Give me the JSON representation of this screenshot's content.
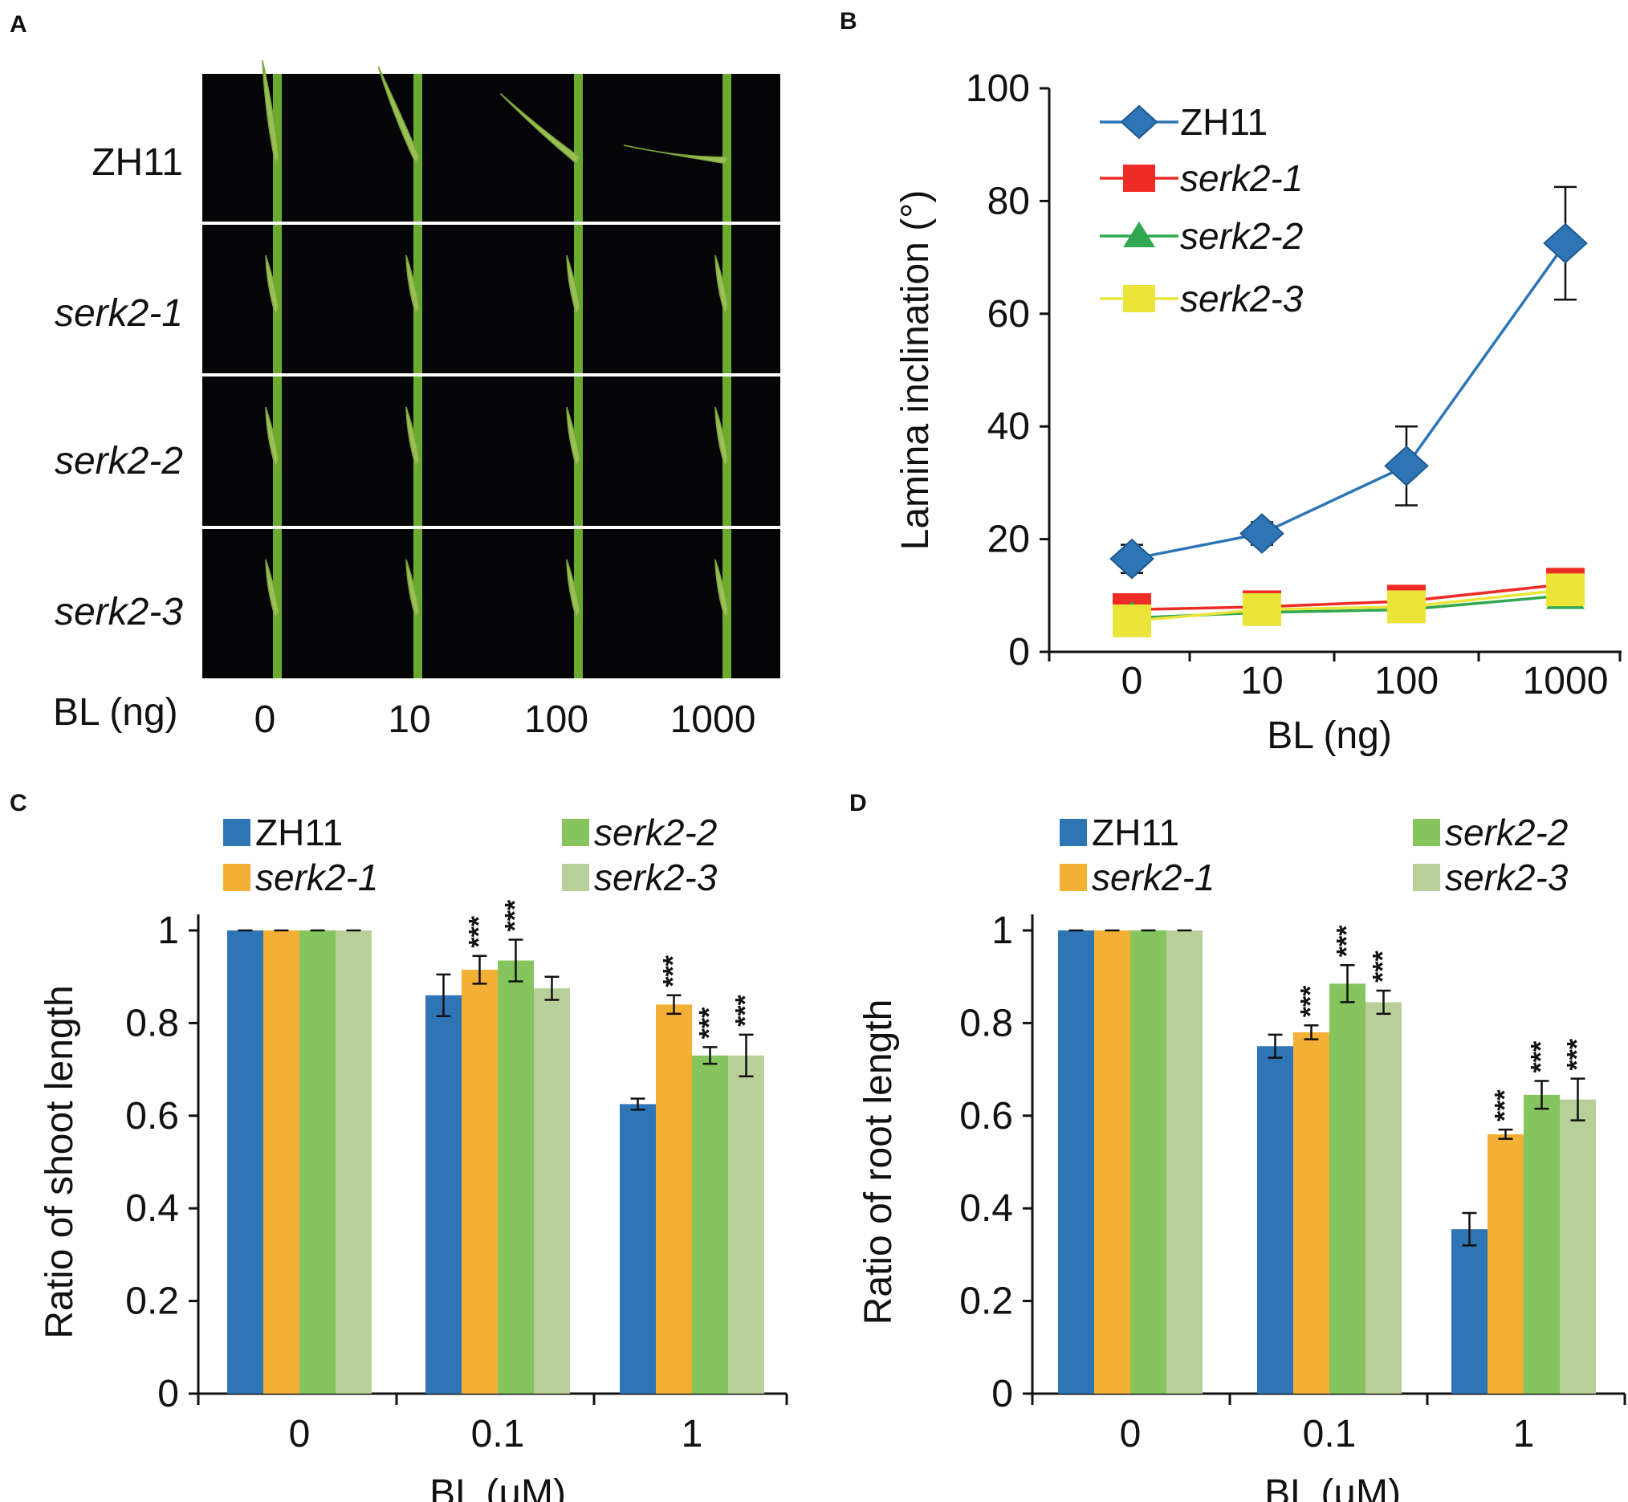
{
  "figure": {
    "panel_letters": [
      "A",
      "B",
      "C",
      "D"
    ],
    "colors": {
      "zh11": "#2e75b6",
      "serk2_1_line": "#ee2b24",
      "serk2_2_line": "#2fa84f",
      "serk2_3_line": "#ebe53a",
      "serk2_1_bar": "#f4b034",
      "serk2_2_bar": "#86c45e",
      "serk2_3_bar": "#b8cf9a",
      "stem": "#6aab2f",
      "photo_bg": "#050508"
    }
  },
  "photo": {
    "row_labels": [
      "ZH11",
      "serk2-1",
      "serk2-2",
      "serk2-3"
    ],
    "row_label_italic": [
      false,
      true,
      true,
      true
    ],
    "x_label": "BL (ng)",
    "column_labels": [
      "0",
      "10",
      "100",
      "1000"
    ],
    "leaf_description": "rice lamina joint inclination photographs"
  },
  "chart_data": [
    {
      "panel": "B",
      "type": "line",
      "title": "",
      "xlabel": "BL (ng)",
      "ylabel": "Lamina inclination (°)",
      "categories": [
        "0",
        "10",
        "100",
        "1000"
      ],
      "ylim": [
        0,
        100
      ],
      "yticks": [
        "0",
        "20",
        "40",
        "60",
        "80",
        "100"
      ],
      "legend_position": "top-left",
      "series": [
        {
          "name": "ZH11",
          "italic": false,
          "marker": "diamond",
          "color": "#2e75b6",
          "values": [
            16.5,
            21,
            33,
            72.5
          ],
          "errors": [
            2.5,
            2,
            7,
            10
          ]
        },
        {
          "name": "serk2-1",
          "italic": true,
          "marker": "square",
          "color": "#ee2b24",
          "values": [
            7.5,
            8,
            9,
            12
          ],
          "errors": [
            0,
            0,
            0,
            0
          ]
        },
        {
          "name": "serk2-2",
          "italic": true,
          "marker": "triangle",
          "color": "#2fa84f",
          "values": [
            6,
            7,
            7.5,
            10
          ],
          "errors": [
            0,
            0,
            0,
            0
          ]
        },
        {
          "name": "serk2-3",
          "italic": true,
          "marker": "square",
          "color": "#ebe53a",
          "values": [
            5.5,
            7.5,
            8,
            11
          ],
          "errors": [
            0,
            0,
            0,
            0
          ]
        }
      ]
    },
    {
      "panel": "C",
      "type": "bar",
      "title": "",
      "xlabel": "BL (μM)",
      "ylabel": "Ratio of shoot length",
      "categories": [
        "0",
        "0.1",
        "1"
      ],
      "ylim": [
        0,
        1
      ],
      "yticks": [
        "0",
        "0.2",
        "0.4",
        "0.6",
        "0.8",
        "1"
      ],
      "legend_position": "top",
      "significance_label": "***",
      "series": [
        {
          "name": "ZH11",
          "italic": false,
          "color": "#2e75b6",
          "values": [
            1,
            0.86,
            0.625
          ],
          "errors": [
            0,
            0.045,
            0.012
          ],
          "stars": [
            false,
            false,
            false
          ]
        },
        {
          "name": "serk2-1",
          "italic": true,
          "color": "#f4b034",
          "values": [
            1,
            0.915,
            0.84
          ],
          "errors": [
            0,
            0.03,
            0.02
          ],
          "stars": [
            false,
            true,
            true
          ]
        },
        {
          "name": "serk2-2",
          "italic": true,
          "color": "#86c45e",
          "values": [
            1,
            0.935,
            0.73
          ],
          "errors": [
            0,
            0.045,
            0.018
          ],
          "stars": [
            false,
            true,
            true
          ]
        },
        {
          "name": "serk2-3",
          "italic": true,
          "color": "#b8cf9a",
          "values": [
            1,
            0.875,
            0.73
          ],
          "errors": [
            0,
            0.025,
            0.045
          ],
          "stars": [
            false,
            false,
            true
          ]
        }
      ]
    },
    {
      "panel": "D",
      "type": "bar",
      "title": "",
      "xlabel": "BL (μM)",
      "ylabel": "Ratio of root length",
      "categories": [
        "0",
        "0.1",
        "1"
      ],
      "ylim": [
        0,
        1
      ],
      "yticks": [
        "0",
        "0.2",
        "0.4",
        "0.6",
        "0.8",
        "1"
      ],
      "legend_position": "top",
      "significance_label": "***",
      "series": [
        {
          "name": "ZH11",
          "italic": false,
          "color": "#2e75b6",
          "values": [
            1,
            0.75,
            0.355
          ],
          "errors": [
            0,
            0.025,
            0.035
          ],
          "stars": [
            false,
            false,
            false
          ]
        },
        {
          "name": "serk2-1",
          "italic": true,
          "color": "#f4b034",
          "values": [
            1,
            0.78,
            0.56
          ],
          "errors": [
            0,
            0.015,
            0.01
          ],
          "stars": [
            false,
            true,
            true
          ]
        },
        {
          "name": "serk2-2",
          "italic": true,
          "color": "#86c45e",
          "values": [
            1,
            0.885,
            0.645
          ],
          "errors": [
            0,
            0.04,
            0.03
          ],
          "stars": [
            false,
            true,
            true
          ]
        },
        {
          "name": "serk2-3",
          "italic": true,
          "color": "#b8cf9a",
          "values": [
            1,
            0.845,
            0.635
          ],
          "errors": [
            0,
            0.025,
            0.045
          ],
          "stars": [
            false,
            true,
            true
          ]
        }
      ]
    }
  ]
}
